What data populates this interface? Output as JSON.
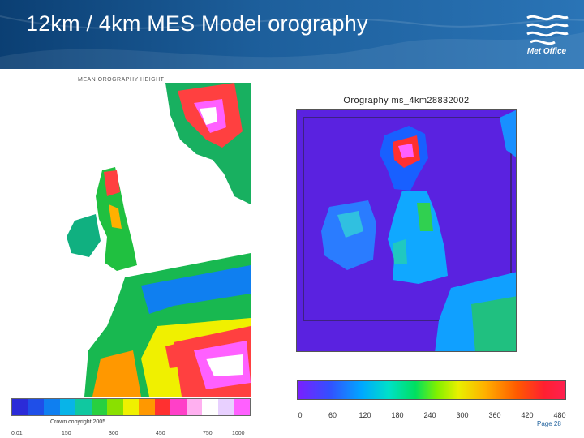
{
  "header": {
    "title": "12km / 4km  MES Model orography",
    "logo_text": "Met Office"
  },
  "left_map": {
    "caption": "MEAN OROGRAPHY HEIGHT",
    "scale_colors": [
      "#2b2bd8",
      "#1f4fe8",
      "#0f7ff0",
      "#08b4e8",
      "#10c8a0",
      "#28d040",
      "#8ae000",
      "#f0f000",
      "#ff9800",
      "#ff3030",
      "#ff40c8",
      "#ffb0f0",
      "#ffffff",
      "#e8d0ff",
      "#ff60ff"
    ],
    "scale_labels": [
      "0.01",
      "150",
      "300",
      "450",
      "750",
      "1000"
    ],
    "copyright": "Crown copyright 2005"
  },
  "right_map": {
    "caption": "Orography ms_4km28832002",
    "scale_labels": [
      "0",
      "60",
      "120",
      "180",
      "240",
      "300",
      "360",
      "420",
      "480"
    ]
  },
  "footer": {
    "page": "Page 28"
  },
  "colors": {
    "header_dark": "#0b3f73",
    "header_light": "#2a74b6",
    "sea_right": "#5a22e0"
  }
}
